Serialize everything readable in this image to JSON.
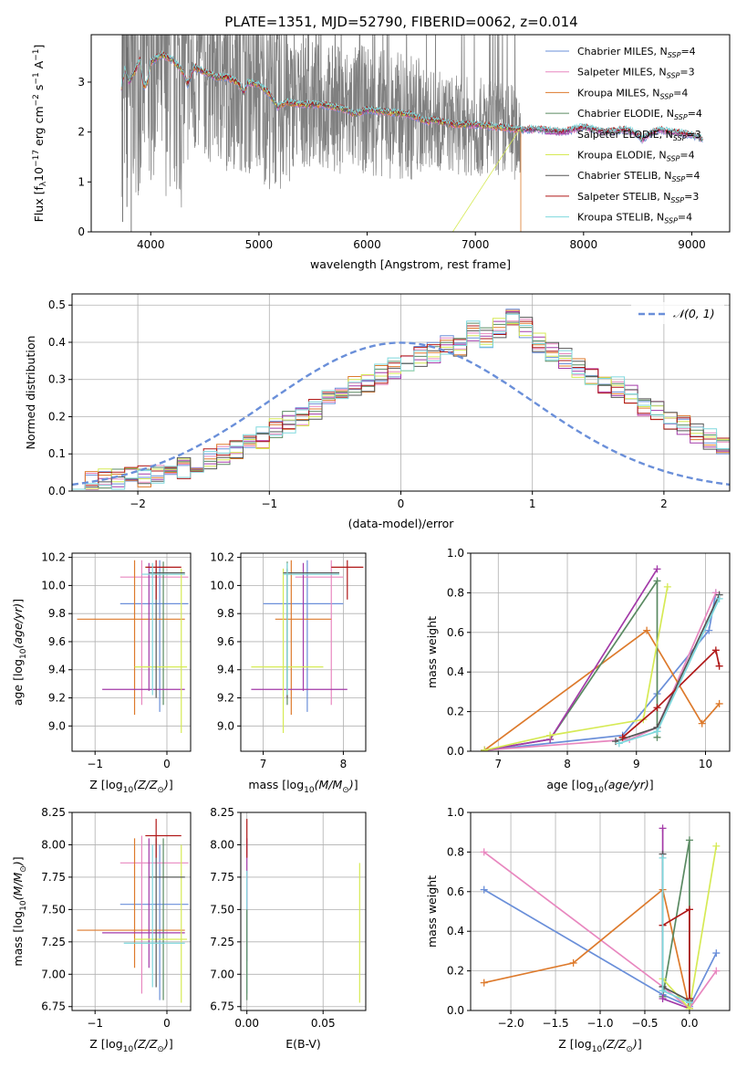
{
  "title": "PLATE=1351, MJD=52790, FIBERID=0062, z=0.014",
  "colors": [
    "#6a8fd9",
    "#e887bf",
    "#dd7a2c",
    "#5a8a62",
    "#a33aa8",
    "#d6ea55",
    "#555555",
    "#b01818",
    "#7ed8dd"
  ],
  "legend_entries": [
    {
      "name": "Chabrier MILES, N",
      "sub": "SSP",
      "n": "=4"
    },
    {
      "name": "Salpeter MILES, N",
      "sub": "SSP",
      "n": "=3"
    },
    {
      "name": "Kroupa MILES, N",
      "sub": "SSP",
      "n": "=4"
    },
    {
      "name": "Chabrier ELODIE, N",
      "sub": "SSP",
      "n": "=4"
    },
    {
      "name": "Salpeter ELODIE, N",
      "sub": "SSP",
      "n": "=3"
    },
    {
      "name": "Kroupa ELODIE, N",
      "sub": "SSP",
      "n": "=4"
    },
    {
      "name": "Chabrier STELIB, N",
      "sub": "SSP",
      "n": "=4"
    },
    {
      "name": "Salpeter STELIB, N",
      "sub": "SSP",
      "n": "=3"
    },
    {
      "name": "Kroupa STELIB, N",
      "sub": "SSP",
      "n": "=4"
    }
  ],
  "chart_data": [
    {
      "id": "spectrum",
      "type": "line",
      "xlabel": "wavelength [Angstrom, rest frame]",
      "ylabel_parts": [
        "Flux [f",
        "λ",
        "10",
        "−17",
        " erg cm",
        "−2",
        " s",
        "−1",
        " A",
        "−1",
        "]"
      ],
      "xlim": [
        3450,
        9350
      ],
      "ylim": [
        0,
        3.95
      ],
      "xticks": [
        4000,
        5000,
        6000,
        7000,
        8000,
        9000
      ],
      "yticks": [
        0,
        1,
        2,
        3
      ],
      "data_range": [
        3730,
        7420
      ],
      "data_shape": [
        [
          3730,
          3.3
        ],
        [
          3800,
          3.4
        ],
        [
          3900,
          3.3
        ],
        [
          4000,
          3.45
        ],
        [
          4100,
          3.35
        ],
        [
          4200,
          3.25
        ],
        [
          4300,
          3.05
        ],
        [
          4400,
          3.15
        ],
        [
          4500,
          3.2
        ],
        [
          4600,
          3.1
        ],
        [
          4700,
          3.0
        ],
        [
          4800,
          3.05
        ],
        [
          4900,
          2.95
        ],
        [
          5000,
          2.85
        ],
        [
          5100,
          2.65
        ],
        [
          5200,
          2.55
        ],
        [
          5400,
          2.6
        ],
        [
          5600,
          2.5
        ],
        [
          5800,
          2.45
        ],
        [
          6000,
          2.45
        ],
        [
          6200,
          2.35
        ],
        [
          6400,
          2.3
        ],
        [
          6600,
          2.25
        ],
        [
          6800,
          2.15
        ],
        [
          7000,
          2.1
        ],
        [
          7200,
          2.05
        ],
        [
          7400,
          2.0
        ]
      ],
      "model_shape": [
        [
          3730,
          2.9
        ],
        [
          3760,
          3.25
        ],
        [
          3800,
          3.0
        ],
        [
          3850,
          3.2
        ],
        [
          3900,
          3.45
        ],
        [
          3935,
          2.9
        ],
        [
          3970,
          3.0
        ],
        [
          4000,
          3.4
        ],
        [
          4100,
          3.55
        ],
        [
          4200,
          3.45
        ],
        [
          4300,
          3.2
        ],
        [
          4340,
          2.95
        ],
        [
          4400,
          3.3
        ],
        [
          4500,
          3.2
        ],
        [
          4600,
          3.1
        ],
        [
          4700,
          3.1
        ],
        [
          4800,
          3.0
        ],
        [
          4860,
          2.8
        ],
        [
          4900,
          3.0
        ],
        [
          5000,
          2.95
        ],
        [
          5100,
          2.75
        ],
        [
          5175,
          2.5
        ],
        [
          5250,
          2.6
        ],
        [
          5400,
          2.55
        ],
        [
          5600,
          2.55
        ],
        [
          5800,
          2.45
        ],
        [
          5890,
          2.35
        ],
        [
          6000,
          2.45
        ],
        [
          6200,
          2.4
        ],
        [
          6400,
          2.35
        ],
        [
          6563,
          2.2
        ],
        [
          6600,
          2.25
        ],
        [
          6800,
          2.15
        ],
        [
          7000,
          2.15
        ],
        [
          7200,
          2.1
        ],
        [
          7400,
          2.05
        ],
        [
          7600,
          2.05
        ],
        [
          7800,
          2.0
        ],
        [
          8000,
          2.1
        ],
        [
          8200,
          2.0
        ],
        [
          8400,
          2.05
        ],
        [
          8500,
          1.95
        ],
        [
          8542,
          1.85
        ],
        [
          8600,
          1.95
        ],
        [
          8700,
          2.05
        ],
        [
          8800,
          2.0
        ],
        [
          9000,
          1.95
        ],
        [
          9100,
          1.85
        ]
      ]
    },
    {
      "id": "residuals",
      "type": "histogram",
      "xlabel": "(data-model)/error",
      "ylabel": "Normed distribution",
      "xlim": [
        -2.5,
        2.5
      ],
      "ylim": [
        0,
        0.53
      ],
      "xticks": [
        -2,
        -1,
        0,
        1,
        2
      ],
      "yticks": [
        0.0,
        0.1,
        0.2,
        0.3,
        0.4,
        0.5
      ],
      "bin_width": 0.1,
      "bin_start": -2.5,
      "gaussian_label": "𝒩(0, 1)",
      "reference_values": [
        0.026,
        0.027,
        0.034,
        0.03,
        0.034,
        0.038,
        0.04,
        0.049,
        0.06,
        0.072,
        0.085,
        0.101,
        0.117,
        0.13,
        0.143,
        0.167,
        0.185,
        0.203,
        0.222,
        0.24,
        0.262,
        0.28,
        0.296,
        0.313,
        0.332,
        0.345,
        0.36,
        0.372,
        0.388,
        0.392,
        0.432,
        0.41,
        0.44,
        0.475,
        0.44,
        0.395,
        0.37,
        0.36,
        0.328,
        0.3,
        0.286,
        0.28,
        0.258,
        0.23,
        0.214,
        0.19,
        0.174,
        0.156,
        0.138,
        0.118,
        0.11,
        0.088,
        0.072,
        0.062,
        0.05,
        0.043,
        0.038,
        0.034,
        0.03,
        0.026
      ]
    },
    {
      "id": "age-vs-Z",
      "type": "errorbar",
      "xlabel": "Z [log10(Z/Z⊙)]",
      "ylabel": "age  [log10(age/yr)]",
      "xlim": [
        -1.32,
        0.33
      ],
      "ylim": [
        8.82,
        10.23
      ],
      "xticks": [
        -1,
        0
      ],
      "yticks": [
        9.0,
        9.2,
        9.4,
        9.6,
        9.8,
        10.0,
        10.2
      ],
      "points": [
        {
          "s": 0,
          "x": -0.1,
          "y": 9.87,
          "xlo": -0.65,
          "xhi": 0.3,
          "ylo": 9.1,
          "yhi": 10.18
        },
        {
          "s": 1,
          "x": -0.35,
          "y": 10.06,
          "xlo": -0.65,
          "xhi": 0.3,
          "ylo": 9.15,
          "yhi": 10.18
        },
        {
          "s": 2,
          "x": -0.45,
          "y": 9.76,
          "xlo": -1.25,
          "xhi": 0.25,
          "ylo": 9.08,
          "yhi": 10.18
        },
        {
          "s": 3,
          "x": -0.05,
          "y": 10.08,
          "xlo": -0.2,
          "xhi": 0.25,
          "ylo": 9.15,
          "yhi": 10.17
        },
        {
          "s": 4,
          "x": -0.25,
          "y": 9.26,
          "xlo": -0.9,
          "xhi": 0.25,
          "ylo": 9.25,
          "yhi": 10.16
        },
        {
          "s": 5,
          "x": 0.2,
          "y": 9.42,
          "xlo": -0.45,
          "xhi": 0.28,
          "ylo": 8.95,
          "yhi": 10.12
        },
        {
          "s": 6,
          "x": -0.15,
          "y": 10.09,
          "xlo": -0.25,
          "xhi": 0.25,
          "ylo": 9.2,
          "yhi": 10.12
        },
        {
          "s": 7,
          "x": -0.15,
          "y": 10.13,
          "xlo": -0.3,
          "xhi": 0.2,
          "ylo": 9.9,
          "yhi": 10.18
        },
        {
          "s": 8,
          "x": -0.2,
          "y": 10.08,
          "xlo": -0.35,
          "xhi": 0.25,
          "ylo": 9.22,
          "yhi": 10.16
        }
      ]
    },
    {
      "id": "age-vs-mass",
      "type": "errorbar",
      "xlabel": "mass [log10(M/M⊙)]",
      "ylabel": "",
      "xlim": [
        6.72,
        8.28
      ],
      "ylim": [
        8.82,
        10.23
      ],
      "xticks": [
        7,
        8
      ],
      "yticks": [
        9.0,
        9.2,
        9.4,
        9.6,
        9.8,
        10.0,
        10.2
      ],
      "points": [
        {
          "s": 0,
          "x": 7.55,
          "y": 9.87,
          "xlo": 7.0,
          "xhi": 8.0,
          "ylo": 9.1,
          "yhi": 10.18
        },
        {
          "s": 1,
          "x": 7.85,
          "y": 10.06,
          "xlo": 7.4,
          "xhi": 8.0,
          "ylo": 9.15,
          "yhi": 10.18
        },
        {
          "s": 2,
          "x": 7.35,
          "y": 9.76,
          "xlo": 7.15,
          "xhi": 7.85,
          "ylo": 9.08,
          "yhi": 10.18
        },
        {
          "s": 3,
          "x": 7.3,
          "y": 10.08,
          "xlo": 7.25,
          "xhi": 7.95,
          "ylo": 9.15,
          "yhi": 10.17
        },
        {
          "s": 4,
          "x": 7.5,
          "y": 9.26,
          "xlo": 6.85,
          "xhi": 8.05,
          "ylo": 9.25,
          "yhi": 10.16
        },
        {
          "s": 5,
          "x": 7.25,
          "y": 9.42,
          "xlo": 6.85,
          "xhi": 7.75,
          "ylo": 8.95,
          "yhi": 10.12
        },
        {
          "s": 6,
          "x": 7.3,
          "y": 10.09,
          "xlo": 7.25,
          "xhi": 7.95,
          "ylo": 9.2,
          "yhi": 10.12
        },
        {
          "s": 7,
          "x": 8.05,
          "y": 10.13,
          "xlo": 7.85,
          "xhi": 8.25,
          "ylo": 9.9,
          "yhi": 10.18
        },
        {
          "s": 8,
          "x": 7.3,
          "y": 10.08,
          "xlo": 7.25,
          "xhi": 7.95,
          "ylo": 9.22,
          "yhi": 10.16
        }
      ]
    },
    {
      "id": "weight-vs-age",
      "type": "line",
      "xlabel": "age  [log10(age/yr)]",
      "ylabel": "mass weight",
      "xlim": [
        6.6,
        10.35
      ],
      "ylim": [
        0,
        1
      ],
      "xticks": [
        7,
        8,
        9,
        10
      ],
      "yticks": [
        0.0,
        0.2,
        0.4,
        0.6,
        0.8,
        1.0
      ],
      "series": [
        {
          "s": 0,
          "x": [
            6.8,
            8.8,
            9.3,
            10.05,
            10.15
          ],
          "y": [
            0.005,
            0.08,
            0.29,
            0.61,
            0.8
          ]
        },
        {
          "s": 1,
          "x": [
            6.8,
            8.9,
            9.3,
            10.15
          ],
          "y": [
            0.005,
            0.06,
            0.12,
            0.8
          ]
        },
        {
          "s": 2,
          "x": [
            6.8,
            9.15,
            9.95,
            10.2
          ],
          "y": [
            0.005,
            0.61,
            0.14,
            0.24
          ]
        },
        {
          "s": 3,
          "x": [
            6.8,
            7.75,
            9.3,
            9.3
          ],
          "y": [
            0.005,
            0.06,
            0.86,
            0.07
          ]
        },
        {
          "s": 4,
          "x": [
            6.8,
            7.75,
            9.3
          ],
          "y": [
            0.005,
            0.06,
            0.92
          ]
        },
        {
          "s": 5,
          "x": [
            6.8,
            7.75,
            9.1,
            9.45
          ],
          "y": [
            0.005,
            0.08,
            0.16,
            0.83
          ]
        },
        {
          "s": 6,
          "x": [
            8.7,
            9.3,
            10.2
          ],
          "y": [
            0.05,
            0.12,
            0.79
          ]
        },
        {
          "s": 7,
          "x": [
            8.8,
            9.3,
            10.15,
            10.2
          ],
          "y": [
            0.07,
            0.22,
            0.51,
            0.43
          ]
        },
        {
          "s": 8,
          "x": [
            8.75,
            9.3,
            10.2
          ],
          "y": [
            0.04,
            0.1,
            0.77
          ]
        }
      ]
    },
    {
      "id": "mass-vs-Z",
      "type": "errorbar",
      "xlabel": "Z [log10(Z/Z⊙)]",
      "ylabel": "mass [log10(M/M⊙)]",
      "xlim": [
        -1.32,
        0.33
      ],
      "ylim": [
        6.72,
        8.25
      ],
      "xticks": [
        -1,
        0
      ],
      "yticks": [
        6.75,
        7.0,
        7.25,
        7.5,
        7.75,
        8.0,
        8.25
      ],
      "points": [
        {
          "s": 0,
          "x": -0.1,
          "y": 7.54,
          "xlo": -0.65,
          "xhi": 0.3,
          "ylo": 6.8,
          "yhi": 8.0
        },
        {
          "s": 1,
          "x": -0.35,
          "y": 7.86,
          "xlo": -0.65,
          "xhi": 0.3,
          "ylo": 6.85,
          "yhi": 8.07
        },
        {
          "s": 2,
          "x": -0.45,
          "y": 7.34,
          "xlo": -1.25,
          "xhi": 0.25,
          "ylo": 7.05,
          "yhi": 8.05
        },
        {
          "s": 3,
          "x": -0.05,
          "y": 7.75,
          "xlo": -0.2,
          "xhi": 0.25,
          "ylo": 6.8,
          "yhi": 8.05
        },
        {
          "s": 4,
          "x": -0.25,
          "y": 7.32,
          "xlo": -0.9,
          "xhi": 0.25,
          "ylo": 7.05,
          "yhi": 8.05
        },
        {
          "s": 5,
          "x": 0.2,
          "y": 7.27,
          "xlo": -0.45,
          "xhi": 0.28,
          "ylo": 6.78,
          "yhi": 8.0
        },
        {
          "s": 6,
          "x": -0.15,
          "y": 7.75,
          "xlo": -0.25,
          "xhi": 0.25,
          "ylo": 6.9,
          "yhi": 8.05
        },
        {
          "s": 7,
          "x": -0.15,
          "y": 8.07,
          "xlo": -0.3,
          "xhi": 0.2,
          "ylo": 7.9,
          "yhi": 8.2
        },
        {
          "s": 8,
          "x": -0.2,
          "y": 7.24,
          "xlo": -0.6,
          "xhi": 0.25,
          "ylo": 6.9,
          "yhi": 8.0
        }
      ]
    },
    {
      "id": "mass-vs-EBV",
      "type": "errorbar",
      "xlabel": "E(B-V)",
      "ylabel": "",
      "xlim": [
        -0.004,
        0.078
      ],
      "ylim": [
        6.72,
        8.25
      ],
      "xticks": [
        0.0,
        0.05
      ],
      "tick_labels": [
        "0.00",
        "0.05"
      ],
      "yticks": [
        6.75,
        7.0,
        7.25,
        7.5,
        7.75,
        8.0,
        8.25
      ],
      "points": [
        {
          "s": 5,
          "x": 0.074,
          "y": 7.3,
          "xlo": 0.074,
          "xhi": 0.074,
          "ylo": 6.78,
          "yhi": 7.86
        },
        {
          "s": 4,
          "x": 0.0,
          "y": 7.5,
          "xlo": 0.0,
          "xhi": 0.0,
          "ylo": 7.1,
          "yhi": 8.05
        },
        {
          "s": 7,
          "x": 0.0,
          "y": 8.0,
          "xlo": 0.0,
          "xhi": 0.0,
          "ylo": 7.9,
          "yhi": 8.2
        },
        {
          "s": 8,
          "x": 0.0,
          "y": 7.3,
          "xlo": 0.0,
          "xhi": 0.0,
          "ylo": 6.85,
          "yhi": 7.8
        },
        {
          "s": 3,
          "x": 0.0,
          "y": 7.1,
          "xlo": 0.0,
          "xhi": 0.0,
          "ylo": 6.8,
          "yhi": 7.5
        }
      ]
    },
    {
      "id": "weight-vs-Z",
      "type": "line",
      "xlabel": "Z [log10(Z/Z⊙)]",
      "ylabel": "mass weight",
      "xlim": [
        -2.45,
        0.45
      ],
      "ylim": [
        0,
        1
      ],
      "xticks": [
        -2.0,
        -1.5,
        -1.0,
        -0.5,
        0.0
      ],
      "tick_labels": [
        "−2.0",
        "−1.5",
        "−1.0",
        "−0.5",
        "0.0"
      ],
      "yticks": [
        0.0,
        0.2,
        0.4,
        0.6,
        0.8,
        1.0
      ],
      "series": [
        {
          "s": 0,
          "x": [
            -2.3,
            -0.3,
            0.0,
            0.3
          ],
          "y": [
            0.61,
            0.08,
            0.02,
            0.29
          ]
        },
        {
          "s": 1,
          "x": [
            -2.3,
            -0.3,
            0.0,
            0.3
          ],
          "y": [
            0.8,
            0.12,
            0.01,
            0.2
          ]
        },
        {
          "s": 2,
          "x": [
            -2.3,
            -1.3,
            -0.3,
            0.0
          ],
          "y": [
            0.14,
            0.24,
            0.61,
            0.01
          ]
        },
        {
          "s": 3,
          "x": [
            -0.3,
            0.0,
            0.0
          ],
          "y": [
            0.07,
            0.86,
            0.01
          ]
        },
        {
          "s": 4,
          "x": [
            -0.3,
            -0.3,
            0.0
          ],
          "y": [
            0.92,
            0.06,
            0.01
          ]
        },
        {
          "s": 5,
          "x": [
            -0.3,
            0.0,
            0.3
          ],
          "y": [
            0.16,
            0.01,
            0.83
          ]
        },
        {
          "s": 6,
          "x": [
            -0.3,
            -0.3,
            0.0
          ],
          "y": [
            0.79,
            0.12,
            0.05
          ]
        },
        {
          "s": 7,
          "x": [
            -0.3,
            0.0,
            0.0
          ],
          "y": [
            0.43,
            0.51,
            0.06
          ]
        },
        {
          "s": 8,
          "x": [
            -0.3,
            -0.3,
            0.0
          ],
          "y": [
            0.77,
            0.1,
            0.04
          ]
        }
      ]
    }
  ]
}
